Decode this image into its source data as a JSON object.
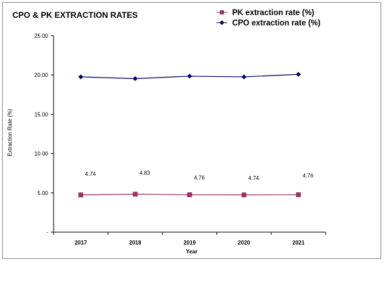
{
  "chart_data": {
    "type": "line",
    "title": "CPO & PK EXTRACTION RATES",
    "xlabel": "Year",
    "ylabel": "Extraction Rate (%)",
    "categories": [
      "2017",
      "2018",
      "2019",
      "2020",
      "2021"
    ],
    "ylim": [
      0,
      25
    ],
    "yticks": [
      0,
      5,
      10,
      15,
      20,
      25
    ],
    "ytick_labels": [
      "-",
      "5.00",
      "10.00",
      "15.00",
      "20.00",
      "25.00"
    ],
    "grid": false,
    "legend_position": "top-right",
    "series": [
      {
        "name": "PK extraction rate (%)",
        "values": [
          4.74,
          4.83,
          4.76,
          4.74,
          4.76
        ],
        "data_labels": [
          "4.74",
          "4.83",
          "4.76",
          "4.74",
          "4.76"
        ],
        "color": "#993366",
        "marker": "square"
      },
      {
        "name": "CPO extraction rate (%)",
        "values": [
          19.76,
          19.54,
          19.85,
          19.76,
          20.08
        ],
        "color": "#000066",
        "marker": "diamond"
      }
    ]
  }
}
